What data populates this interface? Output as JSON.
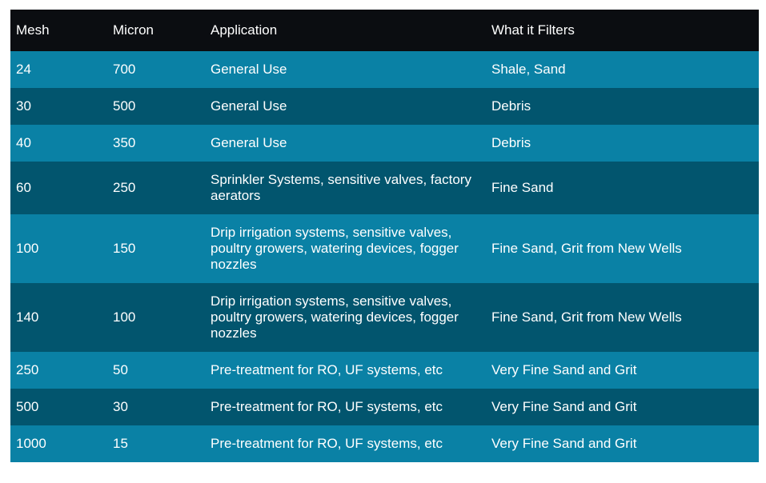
{
  "colors": {
    "header_bg": "#0b0d11",
    "row_light": "#0a81a5",
    "row_dark": "#02556e",
    "text": "#ffffff",
    "page_bg": "#ffffff"
  },
  "table": {
    "columns": {
      "mesh": "Mesh",
      "micron": "Micron",
      "application": "Application",
      "filters": "What it Filters"
    },
    "rows": [
      {
        "mesh": "24",
        "micron": "700",
        "application": "General Use",
        "filters": "Shale, Sand"
      },
      {
        "mesh": "30",
        "micron": "500",
        "application": "General Use",
        "filters": "Debris"
      },
      {
        "mesh": "40",
        "micron": "350",
        "application": "General Use",
        "filters": "Debris"
      },
      {
        "mesh": "60",
        "micron": "250",
        "application": "Sprinkler Systems, sensitive valves, factory aerators",
        "filters": "Fine Sand"
      },
      {
        "mesh": "100",
        "micron": "150",
        "application": "Drip irrigation systems, sensitive valves, poultry growers, watering devices, fogger nozzles",
        "filters": "Fine Sand, Grit from New Wells"
      },
      {
        "mesh": "140",
        "micron": "100",
        "application": "Drip irrigation systems, sensitive valves, poultry growers, watering devices, fogger nozzles",
        "filters": "Fine Sand, Grit from New Wells"
      },
      {
        "mesh": "250",
        "micron": "50",
        "application": "Pre-treatment for RO, UF systems, etc",
        "filters": "Very Fine Sand and Grit"
      },
      {
        "mesh": "500",
        "micron": "30",
        "application": "Pre-treatment for RO, UF systems, etc",
        "filters": "Very Fine Sand and Grit"
      },
      {
        "mesh": "1000",
        "micron": "15",
        "application": "Pre-treatment for RO, UF systems, etc",
        "filters": "Very Fine Sand and Grit"
      }
    ]
  }
}
